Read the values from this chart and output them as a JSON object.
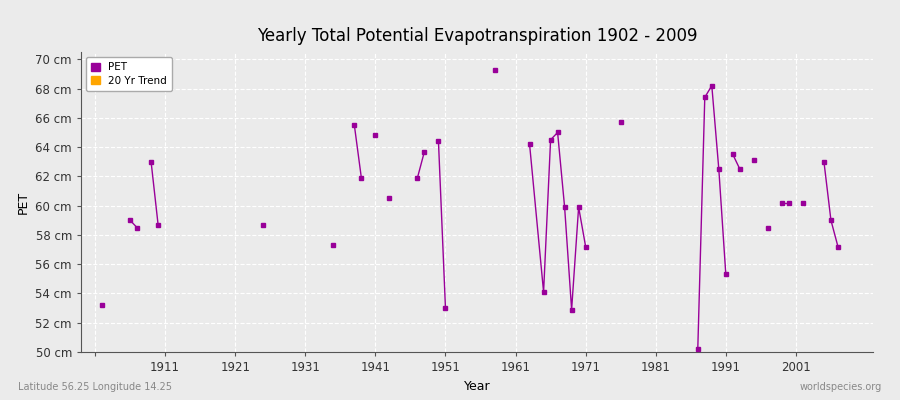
{
  "title": "Yearly Total Potential Evapotranspiration 1902 - 2009",
  "xlabel": "Year",
  "ylabel": "PET",
  "subtitle_left": "Latitude 56.25 Longitude 14.25",
  "subtitle_right": "worldspecies.org",
  "ylim": [
    50,
    70.5
  ],
  "yticks": [
    50,
    52,
    54,
    56,
    58,
    60,
    62,
    64,
    66,
    68,
    70
  ],
  "ytick_labels": [
    "50 cm",
    "52 cm",
    "54 cm",
    "56 cm",
    "58 cm",
    "60 cm",
    "62 cm",
    "64 cm",
    "66 cm",
    "68 cm",
    "70 cm"
  ],
  "xlim": [
    1899,
    2012
  ],
  "xticks": [
    1901,
    1911,
    1921,
    1931,
    1941,
    1951,
    1961,
    1971,
    1981,
    1991,
    2001
  ],
  "xtick_labels": [
    "",
    "1911",
    "1921",
    "1931",
    "1941",
    "1951",
    "1961",
    "1971",
    "1981",
    "1991",
    "2001"
  ],
  "pet_color": "#990099",
  "trend_color": "#FFA500",
  "bg_color": "#EBEBEB",
  "grid_color": "#FFFFFF",
  "pet_data": [
    [
      1902,
      53.2
    ],
    [
      1906,
      59.0
    ],
    [
      1907,
      58.5
    ],
    [
      1909,
      63.0
    ],
    [
      1910,
      58.7
    ],
    [
      1925,
      58.7
    ],
    [
      1935,
      57.3
    ],
    [
      1938,
      65.5
    ],
    [
      1939,
      61.9
    ],
    [
      1941,
      64.8
    ],
    [
      1943,
      60.5
    ],
    [
      1947,
      61.9
    ],
    [
      1948,
      63.7
    ],
    [
      1950,
      64.4
    ],
    [
      1951,
      53.0
    ],
    [
      1958,
      69.3
    ],
    [
      1963,
      64.2
    ],
    [
      1965,
      54.1
    ],
    [
      1966,
      64.5
    ],
    [
      1967,
      65.0
    ],
    [
      1968,
      59.9
    ],
    [
      1969,
      52.9
    ],
    [
      1970,
      59.9
    ],
    [
      1971,
      57.2
    ],
    [
      1976,
      65.7
    ],
    [
      1987,
      50.2
    ],
    [
      1988,
      67.4
    ],
    [
      1989,
      68.2
    ],
    [
      1990,
      62.5
    ],
    [
      1991,
      55.3
    ],
    [
      1992,
      63.5
    ],
    [
      1993,
      62.5
    ],
    [
      1995,
      63.1
    ],
    [
      1997,
      58.5
    ],
    [
      1999,
      60.2
    ],
    [
      2000,
      60.2
    ],
    [
      2002,
      60.2
    ],
    [
      2005,
      63.0
    ],
    [
      2006,
      59.0
    ],
    [
      2007,
      57.2
    ]
  ],
  "connected_groups": [
    [
      1906,
      1907
    ],
    [
      1909,
      1910
    ],
    [
      1938,
      1939
    ],
    [
      1947,
      1948
    ],
    [
      1950,
      1951
    ],
    [
      1963,
      1965,
      1966,
      1967,
      1968,
      1969,
      1970,
      1971
    ],
    [
      1987,
      1988,
      1989,
      1990,
      1991
    ],
    [
      1992,
      1993
    ],
    [
      1999,
      2000
    ],
    [
      2005,
      2006,
      2007
    ]
  ]
}
